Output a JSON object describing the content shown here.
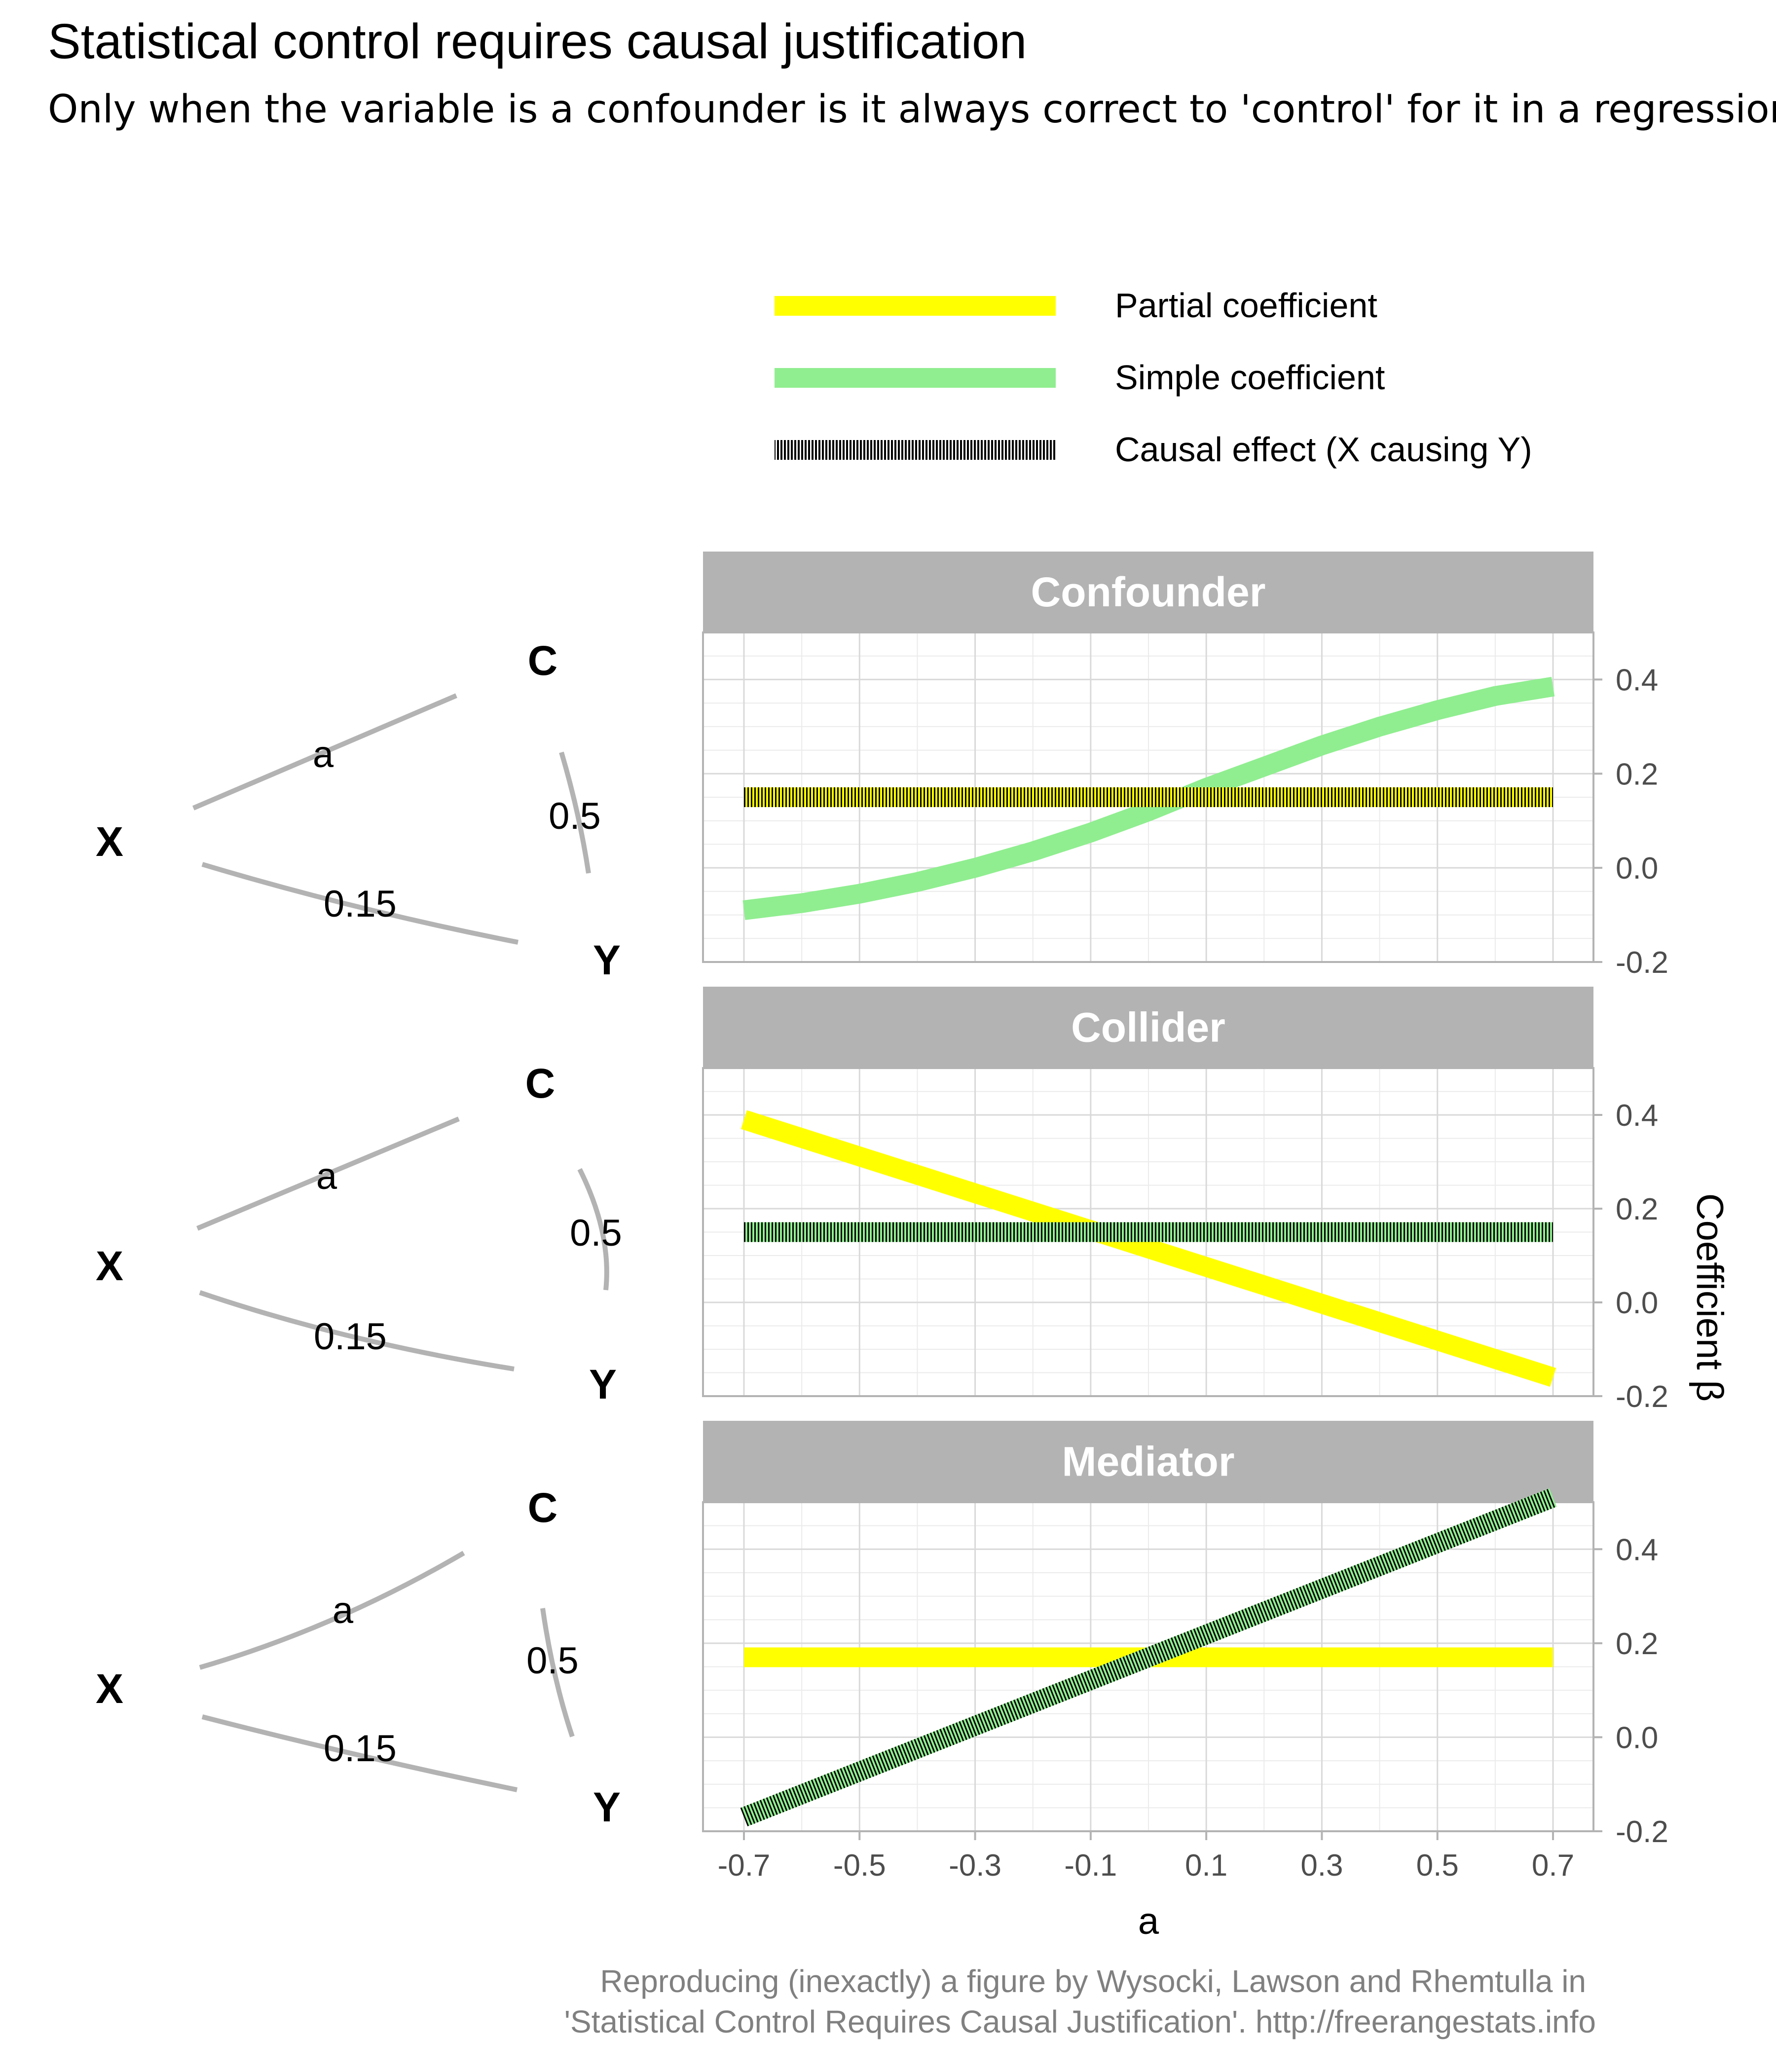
{
  "title": "Statistical control requires causal justification",
  "subtitle": "Only when the variable is a confounder is it always correct to 'control' for it in a regression.",
  "caption": {
    "line1": "Reproducing (inexactly) a figure by Wysocki, Lawson and Rhemtulla in",
    "line2": "'Statistical Control Requires Causal Justification'. http://freerangestats.info"
  },
  "legend": {
    "placement": "top",
    "items": [
      {
        "label": "Partial coefficient",
        "color": "#FFFF00",
        "style": "solid"
      },
      {
        "label": "Simple coefficient",
        "color": "#90EE90",
        "style": "solid"
      },
      {
        "label": "Causal effect (X causing Y)",
        "color": "#000000",
        "style": "dotted"
      }
    ]
  },
  "dags": [
    {
      "nodes": {
        "c": "C",
        "x": "X",
        "y": "Y"
      },
      "edges": {
        "a": "a",
        "c_y": "0.5",
        "x_y": "0.15"
      },
      "arrows": {
        "a": "C->X",
        "c_y": "C->Y",
        "x_y": "X->Y"
      }
    },
    {
      "nodes": {
        "c": "C",
        "x": "X",
        "y": "Y"
      },
      "edges": {
        "a": "a",
        "c_y": "0.5",
        "x_y": "0.15"
      },
      "arrows": {
        "a": "X->C",
        "c_y": "Y->C",
        "x_y": "X->Y"
      }
    },
    {
      "nodes": {
        "c": "C",
        "x": "X",
        "y": "Y"
      },
      "edges": {
        "a": "a",
        "c_y": "0.5",
        "x_y": "0.15"
      },
      "arrows": {
        "a": "X->C",
        "c_y": "C->Y",
        "x_y": "X->Y"
      }
    }
  ],
  "chart_data": {
    "type": "line",
    "facets": [
      "Confounder",
      "Collider",
      "Mediator"
    ],
    "xlabel": "a",
    "ylabel": "Coefficient  β",
    "xlim": [
      -0.7,
      0.7
    ],
    "ylim": [
      -0.2,
      0.5
    ],
    "x_ticks": [
      "-0.7",
      "-0.5",
      "-0.3",
      "-0.1",
      "0.1",
      "0.3",
      "0.5",
      "0.7"
    ],
    "y_ticks": [
      "-0.2",
      "0.0",
      "0.2",
      "0.4"
    ],
    "y_axis_position": "right",
    "grid": true,
    "panels": [
      {
        "facet": "Confounder",
        "series": [
          {
            "name": "Simple coefficient",
            "x": [
              -0.7,
              -0.6,
              -0.5,
              -0.4,
              -0.3,
              -0.2,
              -0.1,
              0.0,
              0.1,
              0.2,
              0.3,
              0.4,
              0.5,
              0.6,
              0.7
            ],
            "y": [
              -0.09,
              -0.075,
              -0.055,
              -0.03,
              0.0,
              0.035,
              0.075,
              0.12,
              0.17,
              0.215,
              0.26,
              0.3,
              0.335,
              0.365,
              0.385
            ]
          },
          {
            "name": "Partial coefficient",
            "x": [
              -0.7,
              0.7
            ],
            "y": [
              0.15,
              0.15
            ]
          },
          {
            "name": "Causal effect (X causing Y)",
            "x": [
              -0.7,
              0.7
            ],
            "y": [
              0.15,
              0.15
            ]
          }
        ]
      },
      {
        "facet": "Collider",
        "series": [
          {
            "name": "Partial coefficient",
            "x": [
              -0.7,
              0.7
            ],
            "y": [
              0.39,
              -0.16
            ]
          },
          {
            "name": "Simple coefficient",
            "x": [
              -0.7,
              0.7
            ],
            "y": [
              0.15,
              0.15
            ]
          },
          {
            "name": "Causal effect (X causing Y)",
            "x": [
              -0.7,
              0.7
            ],
            "y": [
              0.15,
              0.15
            ]
          }
        ]
      },
      {
        "facet": "Mediator",
        "series": [
          {
            "name": "Partial coefficient",
            "x": [
              -0.7,
              0.7
            ],
            "y": [
              0.17,
              0.17
            ]
          },
          {
            "name": "Simple coefficient",
            "x": [
              -0.7,
              0.7
            ],
            "y": [
              -0.17,
              0.51
            ]
          },
          {
            "name": "Causal effect (X causing Y)",
            "x": [
              -0.7,
              0.7
            ],
            "y": [
              -0.17,
              0.51
            ]
          }
        ]
      }
    ]
  }
}
